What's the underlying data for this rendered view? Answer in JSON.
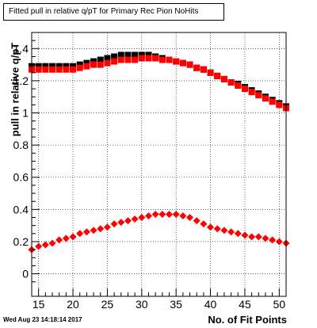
{
  "chart_data": {
    "type": "scatter",
    "title": "Fitted pull in relative q/pT for Primary Rec Pion NoHits",
    "xlabel": "No. of Fit Points",
    "ylabel": "pull in relative q/pT",
    "xlim": [
      14,
      51
    ],
    "ylim": [
      -0.14,
      1.5
    ],
    "xticks": [
      15,
      20,
      25,
      30,
      35,
      40,
      45,
      50
    ],
    "yticks": [
      0,
      0.2,
      0.4,
      0.6,
      0.8,
      1,
      1.2,
      1.4
    ],
    "grid": true,
    "legend": "none",
    "series": [
      {
        "marker": "square",
        "color": "#000000",
        "x": [
          14,
          15,
          16,
          17,
          18,
          19,
          20,
          21,
          22,
          23,
          24,
          25,
          26,
          27,
          28,
          29,
          30,
          31,
          32,
          33,
          34,
          35,
          36,
          37,
          38,
          39,
          40,
          41,
          42,
          43,
          44,
          45,
          46,
          47,
          48,
          49,
          50,
          51
        ],
        "y": [
          1.29,
          1.29,
          1.29,
          1.29,
          1.29,
          1.29,
          1.29,
          1.3,
          1.31,
          1.32,
          1.33,
          1.34,
          1.35,
          1.36,
          1.36,
          1.36,
          1.36,
          1.36,
          1.35,
          1.34,
          1.33,
          1.32,
          1.31,
          1.3,
          1.28,
          1.27,
          1.25,
          1.23,
          1.21,
          1.19,
          1.18,
          1.16,
          1.14,
          1.12,
          1.1,
          1.08,
          1.06,
          1.04
        ]
      },
      {
        "marker": "square",
        "color": "#ff0000",
        "x": [
          14,
          15,
          16,
          17,
          18,
          19,
          20,
          21,
          22,
          23,
          24,
          25,
          26,
          27,
          28,
          29,
          30,
          31,
          32,
          33,
          34,
          35,
          36,
          37,
          38,
          39,
          40,
          41,
          42,
          43,
          44,
          45,
          46,
          47,
          48,
          49,
          50,
          51
        ],
        "y": [
          1.27,
          1.27,
          1.27,
          1.27,
          1.27,
          1.27,
          1.27,
          1.28,
          1.29,
          1.3,
          1.3,
          1.31,
          1.32,
          1.33,
          1.33,
          1.33,
          1.34,
          1.34,
          1.34,
          1.33,
          1.33,
          1.32,
          1.31,
          1.3,
          1.28,
          1.27,
          1.25,
          1.23,
          1.21,
          1.19,
          1.17,
          1.15,
          1.13,
          1.11,
          1.09,
          1.07,
          1.05,
          1.03
        ]
      },
      {
        "marker": "diamond",
        "color": "#ff0000",
        "x": [
          14,
          15,
          16,
          17,
          18,
          19,
          20,
          21,
          22,
          23,
          24,
          25,
          26,
          27,
          28,
          29,
          30,
          31,
          32,
          33,
          34,
          35,
          36,
          37,
          38,
          39,
          40,
          41,
          42,
          43,
          44,
          45,
          46,
          47,
          48,
          49,
          50,
          51
        ],
        "y": [
          0.15,
          0.17,
          0.18,
          0.19,
          0.21,
          0.22,
          0.23,
          0.25,
          0.26,
          0.27,
          0.28,
          0.29,
          0.31,
          0.32,
          0.33,
          0.34,
          0.35,
          0.36,
          0.37,
          0.37,
          0.37,
          0.37,
          0.36,
          0.35,
          0.33,
          0.31,
          0.29,
          0.28,
          0.27,
          0.26,
          0.25,
          0.24,
          0.23,
          0.23,
          0.22,
          0.21,
          0.2,
          0.19
        ]
      }
    ],
    "footer": "Wed Aug 23 14:18:14 2017"
  }
}
